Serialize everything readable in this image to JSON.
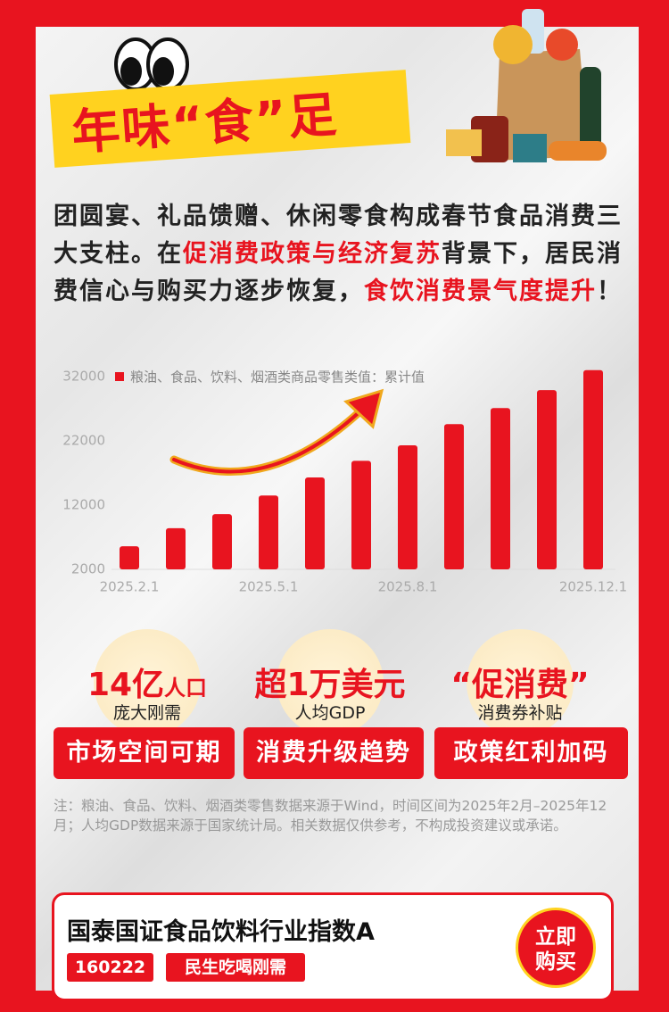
{
  "title": "年味“食”足",
  "intro": [
    "团圆宴、礼品馈赠、休闲零食构成春节食品消费三大支柱。在",
    "促消费政策与经济复苏",
    "背景下，居民消费信心与购买力逐步恢复，",
    "食饮消费景气度提升",
    "！"
  ],
  "chart_data": {
    "type": "bar",
    "categories": [
      "2025.2.1",
      null,
      null,
      "2025.5.1",
      null,
      null,
      "2025.8.1",
      null,
      null,
      null,
      "2025.12.1"
    ],
    "series": [
      {
        "name": "粮油、食品、饮料、烟酒类商品零售类值：累计值",
        "color": "#e8141f",
        "values": [
          5600,
          8400,
          10600,
          13500,
          16300,
          18900,
          21300,
          24600,
          27100,
          29900,
          33000
        ]
      }
    ],
    "ylim": [
      2000,
      34000
    ],
    "yticks": [
      2000,
      12000,
      22000,
      32000
    ],
    "grid": false
  },
  "cards": [
    {
      "big": "14亿",
      "unit": "人口",
      "sub": "庞大刚需",
      "button": "市场空间可期"
    },
    {
      "big": "超1万美元",
      "unit": "",
      "sub": "人均GDP",
      "button": "消费升级趋势"
    },
    {
      "big": "“促消费”",
      "unit": "",
      "sub": "消费券补贴",
      "button": "政策红利加码"
    }
  ],
  "note": "注：粮油、食品、饮料、烟酒类零售数据来源于Wind，时间区间为2025年2月–2025年12月；人均GDP数据来源于国家统计局。相关数据仅供参考，不构成投资建议或承诺。",
  "fund": {
    "name": "国泰国证食品饮料行业指数A",
    "code": "160222",
    "tag": "民生吃喝刚需",
    "action_line1": "立即",
    "action_line2": "购买"
  }
}
